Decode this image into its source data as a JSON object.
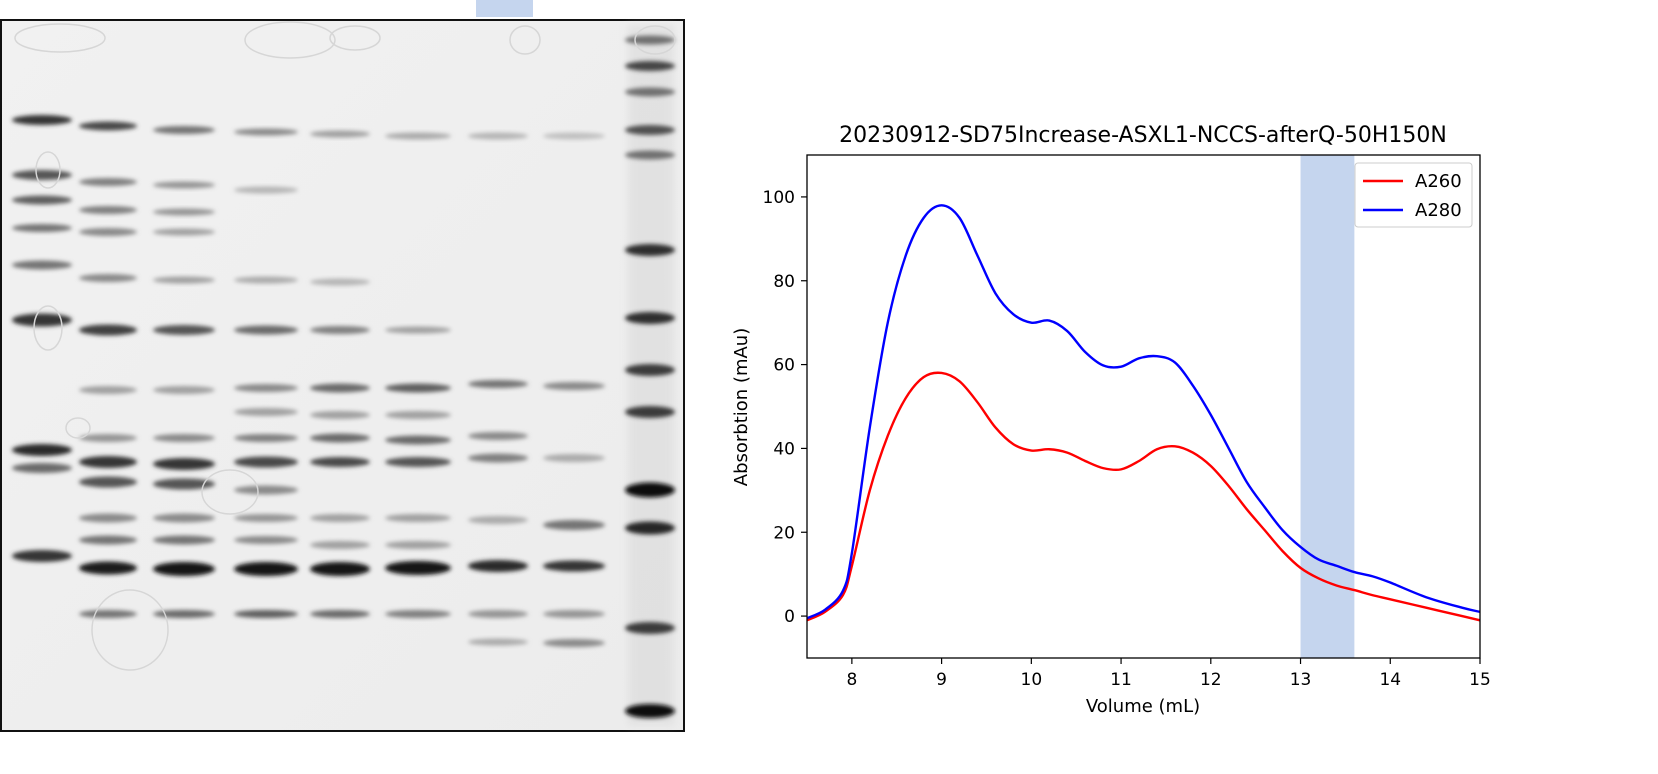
{
  "gel": {
    "lanes": 9,
    "marker_lane": 9
  },
  "chart_data": {
    "type": "line",
    "title": "20230912-SD75Increase-ASXL1-NCCS-afterQ-50H150N",
    "xlabel": "Volume (mL)",
    "ylabel": "Absorbtion (mAu)",
    "xlim": [
      7.5,
      15
    ],
    "ylim": [
      -10,
      110
    ],
    "xticks": [
      8,
      9,
      10,
      11,
      12,
      13,
      14,
      15
    ],
    "yticks": [
      0,
      20,
      40,
      60,
      80,
      100
    ],
    "legend_position": "top-right",
    "grid": false,
    "highlight_band": {
      "x_range": [
        13.0,
        13.6
      ],
      "color": "#c5d5ee"
    },
    "series": [
      {
        "name": "A260",
        "color": "#ff0000",
        "x": [
          7.5,
          7.7,
          7.9,
          8.0,
          8.2,
          8.4,
          8.6,
          8.8,
          9.0,
          9.2,
          9.4,
          9.6,
          9.8,
          10.0,
          10.2,
          10.4,
          10.6,
          10.8,
          11.0,
          11.2,
          11.4,
          11.6,
          11.8,
          12.0,
          12.2,
          12.4,
          12.6,
          12.8,
          13.0,
          13.2,
          13.4,
          13.6,
          13.8,
          14.0,
          14.4,
          14.8,
          15.0
        ],
        "y": [
          -1,
          1,
          5,
          12,
          30,
          43,
          52,
          57,
          58,
          56,
          51,
          45,
          41,
          39.5,
          39.8,
          39,
          37,
          35.3,
          35,
          37,
          39.8,
          40.5,
          39,
          35.8,
          31,
          25.5,
          20.5,
          15.5,
          11.5,
          9,
          7.3,
          6.2,
          5,
          4,
          2,
          0,
          -1
        ]
      },
      {
        "name": "A280",
        "color": "#0000ff",
        "x": [
          7.5,
          7.7,
          7.9,
          8.0,
          8.2,
          8.4,
          8.6,
          8.8,
          9.0,
          9.2,
          9.4,
          9.6,
          9.8,
          10.0,
          10.2,
          10.4,
          10.6,
          10.8,
          11.0,
          11.2,
          11.4,
          11.6,
          11.8,
          12.0,
          12.2,
          12.4,
          12.6,
          12.8,
          13.0,
          13.2,
          13.4,
          13.6,
          13.8,
          14.0,
          14.4,
          14.8,
          15.0
        ],
        "y": [
          -0.5,
          1.5,
          6,
          15,
          45,
          70,
          86,
          95,
          98,
          95,
          86,
          77,
          72,
          70,
          70.5,
          68,
          63,
          59.8,
          59.5,
          61.5,
          62,
          60.5,
          55,
          48,
          40,
          32,
          26,
          20.5,
          16.5,
          13.5,
          12,
          10.5,
          9.5,
          8,
          4.5,
          2,
          1
        ]
      }
    ]
  }
}
